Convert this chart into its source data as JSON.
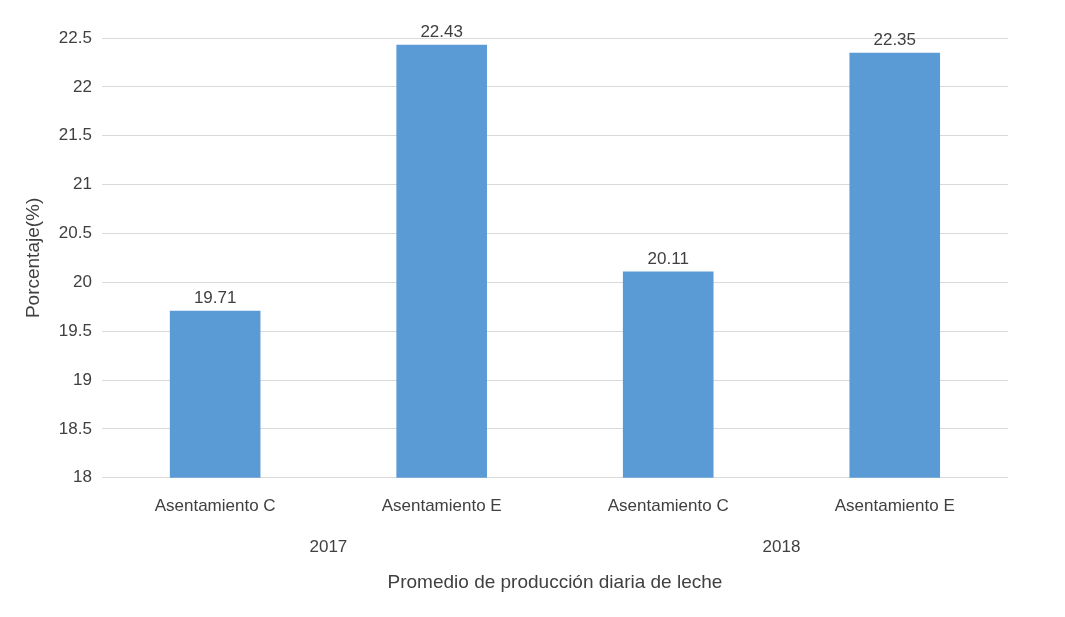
{
  "chart_data": {
    "type": "bar",
    "xlabel": "Promedio de producción diaria de leche",
    "ylabel": "Porcentaje(%)",
    "categories": [
      "Asentamiento C",
      "Asentamiento E",
      "Asentamiento C",
      "Asentamiento E"
    ],
    "values": [
      19.71,
      22.43,
      20.11,
      22.35
    ],
    "color": "#5b9bd5",
    "ylim": [
      18,
      22.5
    ],
    "yticks": [
      18,
      18.5,
      19,
      19.5,
      20,
      20.5,
      21,
      21.5,
      22,
      22.5
    ],
    "grid": "y",
    "legend": false,
    "data_labels": true,
    "annotations": [
      "2017",
      "2018"
    ]
  }
}
